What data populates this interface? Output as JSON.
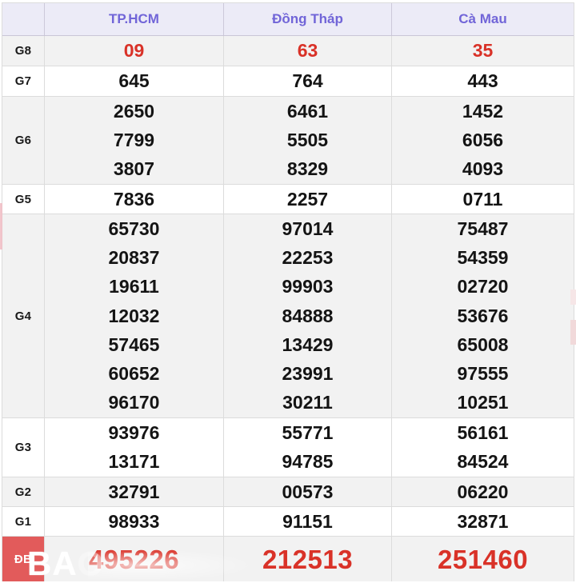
{
  "colors": {
    "header_bg": "#ecebf7",
    "header_text": "#7165d8",
    "stripe_bg": "#f2f2f2",
    "number_color": "#141414",
    "red_number": "#d93228",
    "special_label_bg": "#e25b5b",
    "border": "#dcdcdc"
  },
  "header": {
    "columns": [
      {
        "label": "TP.HCM"
      },
      {
        "label": "Đồng Tháp"
      },
      {
        "label": "Cà Mau"
      }
    ]
  },
  "prizes": [
    {
      "label": "G8",
      "style": "red",
      "cells": [
        [
          "09"
        ],
        [
          "63"
        ],
        [
          "35"
        ]
      ]
    },
    {
      "label": "G7",
      "cells": [
        [
          "645"
        ],
        [
          "764"
        ],
        [
          "443"
        ]
      ]
    },
    {
      "label": "G6",
      "cells": [
        [
          "2650",
          "7799",
          "3807"
        ],
        [
          "6461",
          "5505",
          "8329"
        ],
        [
          "1452",
          "6056",
          "4093"
        ]
      ]
    },
    {
      "label": "G5",
      "cells": [
        [
          "7836"
        ],
        [
          "2257"
        ],
        [
          "0711"
        ]
      ]
    },
    {
      "label": "G4",
      "cells": [
        [
          "65730",
          "20837",
          "19611",
          "12032",
          "57465",
          "60652",
          "96170"
        ],
        [
          "97014",
          "22253",
          "99903",
          "84888",
          "13429",
          "23991",
          "30211"
        ],
        [
          "75487",
          "54359",
          "02720",
          "53676",
          "65008",
          "97555",
          "10251"
        ]
      ]
    },
    {
      "label": "G3",
      "cells": [
        [
          "93976",
          "13171"
        ],
        [
          "55771",
          "94785"
        ],
        [
          "56161",
          "84524"
        ]
      ]
    },
    {
      "label": "G2",
      "cells": [
        [
          "32791"
        ],
        [
          "00573"
        ],
        [
          "06220"
        ]
      ]
    },
    {
      "label": "G1",
      "cells": [
        [
          "98933"
        ],
        [
          "91151"
        ],
        [
          "32871"
        ]
      ]
    },
    {
      "label": "ĐB",
      "special": true,
      "cells": [
        [
          "495226"
        ],
        [
          "212513"
        ],
        [
          "251460"
        ]
      ]
    }
  ],
  "watermark": {
    "strong": "BA",
    "faint": "O"
  }
}
